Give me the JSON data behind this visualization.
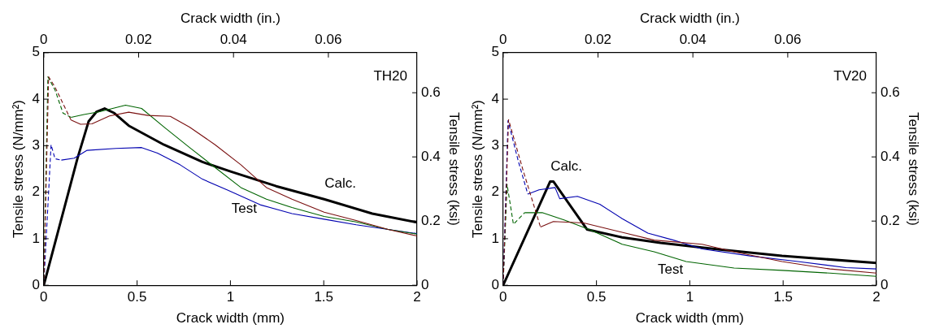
{
  "chart_data": [
    {
      "type": "line",
      "xlabel": "Crack width (mm)",
      "ylabel": "Tensile stress (N/mm²)",
      "x2label": "Crack width (in.)",
      "y2label": "Tensile stress (ksi)",
      "xlim": [
        0,
        2
      ],
      "xticks": [
        0,
        0.5,
        1,
        1.5,
        2
      ],
      "ylim": [
        0,
        5
      ],
      "yticks": [
        0,
        1,
        2,
        3,
        4,
        5
      ],
      "x2lim": [
        0,
        0.0787
      ],
      "x2ticks": [
        0,
        0.02,
        0.04,
        0.06
      ],
      "y2lim": [
        0,
        0.725
      ],
      "y2ticks": [
        0,
        0.2,
        0.4,
        0.6
      ],
      "grid": false,
      "legend": false,
      "marker": "none",
      "annotations": [
        "TH20",
        {
          "text": "Calc.",
          "x": 1.502,
          "y": 1.85
        },
        {
          "text": "Test",
          "x": 0.987,
          "y": 2.04
        }
      ],
      "series": [
        {
          "color": "#7a1010",
          "line_style": "dashed",
          "x": [
            0,
            0.026,
            0.06,
            0.112,
            0.146
          ],
          "values": [
            0,
            4.48,
            4.26,
            3.83,
            3.55
          ]
        },
        {
          "color": "#7a1010",
          "line_style": "solid",
          "x": [
            0.146,
            0.197,
            0.258,
            0.352,
            0.455,
            0.558,
            0.678,
            0.781,
            0.918,
            1.056,
            1.193,
            1.33,
            1.502,
            1.674,
            1.845,
            2
          ],
          "values": [
            3.55,
            3.46,
            3.47,
            3.64,
            3.72,
            3.65,
            3.63,
            3.4,
            3.02,
            2.59,
            2.1,
            1.85,
            1.57,
            1.39,
            1.2,
            1.06
          ]
        },
        {
          "color": "#006400",
          "line_style": "dashed",
          "x": [
            0,
            0.022,
            0.06,
            0.103,
            0.146
          ],
          "values": [
            0,
            4.48,
            4.2,
            3.7,
            3.61
          ]
        },
        {
          "color": "#006400",
          "line_style": "solid",
          "x": [
            0.146,
            0.215,
            0.3,
            0.438,
            0.524,
            0.644,
            0.781,
            0.918,
            1.056,
            1.193,
            1.33,
            1.502,
            1.674,
            1.845,
            2
          ],
          "values": [
            3.61,
            3.67,
            3.73,
            3.87,
            3.8,
            3.4,
            2.96,
            2.53,
            2.1,
            1.85,
            1.67,
            1.48,
            1.36,
            1.2,
            1.1
          ]
        },
        {
          "color": "#0000b0",
          "line_style": "dashed",
          "x": [
            0,
            0.039,
            0.06,
            0.094
          ],
          "values": [
            0,
            3.02,
            2.72,
            2.69
          ]
        },
        {
          "color": "#0000b0",
          "line_style": "solid",
          "x": [
            0.094,
            0.163,
            0.232,
            0.386,
            0.524,
            0.609,
            0.73,
            0.85,
            0.987,
            1.159,
            1.33,
            1.502,
            1.674,
            1.845,
            2
          ],
          "values": [
            2.69,
            2.73,
            2.9,
            2.94,
            2.96,
            2.84,
            2.59,
            2.28,
            2.04,
            1.73,
            1.54,
            1.42,
            1.3,
            1.2,
            1.11
          ]
        },
        {
          "color": "#000000",
          "line_style": "solid",
          "x": [
            0,
            0.18,
            0.24,
            0.283,
            0.326,
            0.378,
            0.455,
            0.644,
            0.85,
            1.004,
            1.245,
            1.502,
            1.76,
            2
          ],
          "values": [
            0,
            2.72,
            3.52,
            3.73,
            3.8,
            3.7,
            3.43,
            3.02,
            2.65,
            2.44,
            2.13,
            1.85,
            1.54,
            1.35
          ]
        }
      ]
    },
    {
      "type": "line",
      "xlabel": "Crack width (mm)",
      "ylabel": "Tensile stress (N/mm²)",
      "x2label": "Crack width (in.)",
      "y2label": "Tensile stress (ksi)",
      "xlim": [
        0,
        2
      ],
      "xticks": [
        0,
        0.5,
        1,
        1.5,
        2
      ],
      "ylim": [
        0,
        5
      ],
      "yticks": [
        0,
        1,
        2,
        3,
        4,
        5
      ],
      "x2lim": [
        0,
        0.0787
      ],
      "x2ticks": [
        0,
        0.02,
        0.04,
        0.06
      ],
      "y2lim": [
        0,
        0.725
      ],
      "y2ticks": [
        0,
        0.2,
        0.4,
        0.6
      ],
      "grid": false,
      "legend": false,
      "marker": "none",
      "annotations": [
        "TV20",
        {
          "text": "Calc.",
          "x": 0.252,
          "y": 2.23
        },
        {
          "text": "Test",
          "x": 0.809,
          "y": 0.72
        }
      ],
      "series": [
        {
          "color": "#7a1010",
          "line_style": "dashed",
          "x": [
            0,
            0.029,
            0.106,
            0.2
          ],
          "values": [
            0,
            3.56,
            2.48,
            1.25
          ]
        },
        {
          "color": "#7a1010",
          "line_style": "solid",
          "x": [
            0.2,
            0.269,
            0.432,
            0.552,
            0.809,
            1.066,
            1.237,
            1.494,
            1.751,
            2
          ],
          "values": [
            1.25,
            1.37,
            1.34,
            1.22,
            0.97,
            0.88,
            0.72,
            0.51,
            0.35,
            0.26
          ]
        },
        {
          "color": "#0000b0",
          "line_style": "dashed",
          "x": [
            0,
            0.026,
            0.081,
            0.132
          ],
          "values": [
            0,
            3.54,
            2.67,
            1.96
          ]
        },
        {
          "color": "#0000b0",
          "line_style": "solid",
          "x": [
            0.132,
            0.192,
            0.278,
            0.303,
            0.398,
            0.518,
            0.638,
            0.775,
            0.912,
            1.066,
            1.323,
            1.58,
            1.837,
            2
          ],
          "values": [
            1.96,
            2.05,
            2.1,
            1.86,
            1.91,
            1.74,
            1.43,
            1.12,
            0.97,
            0.78,
            0.63,
            0.51,
            0.38,
            0.35
          ]
        },
        {
          "color": "#006400",
          "line_style": "dashed",
          "x": [
            0,
            0.021,
            0.055,
            0.115
          ],
          "values": [
            0,
            2.17,
            1.31,
            1.56
          ]
        },
        {
          "color": "#006400",
          "line_style": "solid",
          "x": [
            0.115,
            0.209,
            0.329,
            0.466,
            0.638,
            0.809,
            0.98,
            1.237,
            1.494,
            1.751,
            2
          ],
          "values": [
            1.56,
            1.56,
            1.4,
            1.19,
            0.88,
            0.72,
            0.51,
            0.37,
            0.32,
            0.26,
            0.19
          ]
        },
        {
          "color": "#000000",
          "line_style": "solid",
          "x": [
            0,
            0.252,
            0.269,
            0.449,
            0.637,
            0.843,
            1.152,
            1.494,
            2
          ],
          "values": [
            0,
            2.23,
            2.23,
            1.2,
            1.03,
            0.91,
            0.77,
            0.63,
            0.48
          ]
        }
      ]
    }
  ]
}
